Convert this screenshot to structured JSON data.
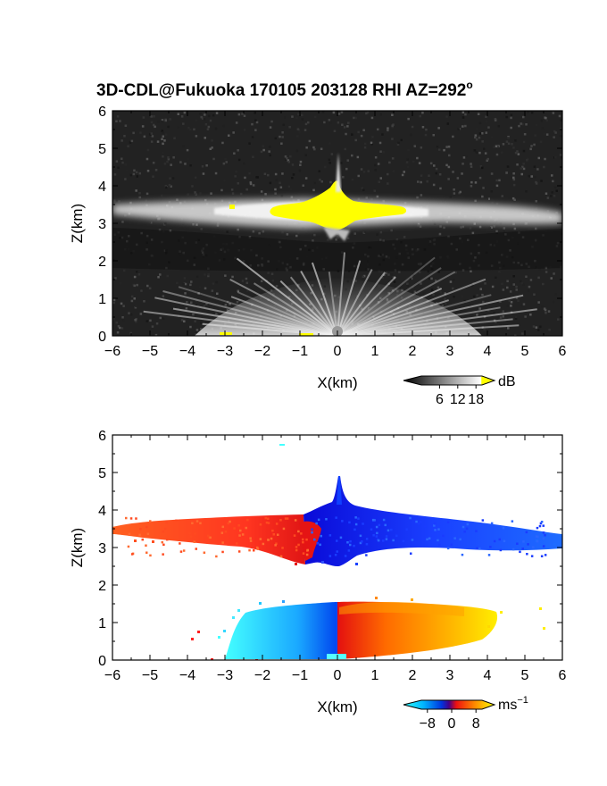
{
  "title_main": "3D-CDL@Fukuoka 170105 203128 RHI AZ=292",
  "title_sup": "o",
  "chart_data": [
    {
      "type": "heatmap",
      "variable": "backscatter intensity",
      "colormap": "gray with yellow saturation",
      "xlabel": "X(km)",
      "ylabel": "Z(km)",
      "xlim": [
        -6,
        6
      ],
      "ylim": [
        0,
        6
      ],
      "xticks": [
        -6,
        -5,
        -4,
        -3,
        -2,
        -1,
        0,
        1,
        2,
        3,
        4,
        5,
        6
      ],
      "yticks": [
        0,
        1,
        2,
        3,
        4,
        5,
        6
      ],
      "colorbar": {
        "unit": "dB",
        "ticks": [
          6,
          12,
          18
        ],
        "range": [
          0,
          20
        ]
      },
      "features": [
        {
          "name": "cloud layer",
          "z_center_km": 3.35,
          "z_thickness_km": 0.35,
          "x_range_km": [
            -6,
            6
          ]
        },
        {
          "name": "saturated core",
          "x_range_km": [
            -1.6,
            1.9
          ],
          "z_range_km": [
            2.8,
            4.1
          ]
        },
        {
          "name": "spike",
          "x_km": 0.05,
          "z_top_km": 4.9
        },
        {
          "name": "near-ground fan",
          "x_range_km": [
            -3.5,
            3.5
          ],
          "z_top_km": 1.5
        }
      ]
    },
    {
      "type": "heatmap",
      "variable": "Doppler velocity",
      "colormap": "cyan-blue-red-yellow",
      "xlabel": "X(km)",
      "ylabel": "Z(km)",
      "xlim": [
        -6,
        6
      ],
      "ylim": [
        0,
        6
      ],
      "xticks": [
        -6,
        -5,
        -4,
        -3,
        -2,
        -1,
        0,
        1,
        2,
        3,
        4,
        5,
        6
      ],
      "yticks": [
        0,
        1,
        2,
        3,
        4,
        5,
        6
      ],
      "colorbar": {
        "unit_base": "ms",
        "unit_exp": "−1",
        "ticks": [
          "−8",
          "0",
          "8"
        ],
        "range": [
          -10,
          10
        ]
      },
      "features": [
        {
          "name": "upper layer west",
          "x_range_km": [
            -6,
            -0.9
          ],
          "z_range_km": [
            3.1,
            3.7
          ],
          "velocity": "positive (red)"
        },
        {
          "name": "upper layer east",
          "x_range_km": [
            -0.9,
            6
          ],
          "z_range_km": [
            2.6,
            4.8
          ],
          "velocity": "negative (blue)"
        },
        {
          "name": "lower layer west",
          "x_range_km": [
            -3,
            0
          ],
          "z_range_km": [
            0,
            1.5
          ],
          "velocity": "negative (cyan/blue)"
        },
        {
          "name": "lower layer east",
          "x_range_km": [
            0,
            4.5
          ],
          "z_range_km": [
            0,
            1.5
          ],
          "velocity": "positive (red/orange/yellow)"
        }
      ]
    }
  ]
}
